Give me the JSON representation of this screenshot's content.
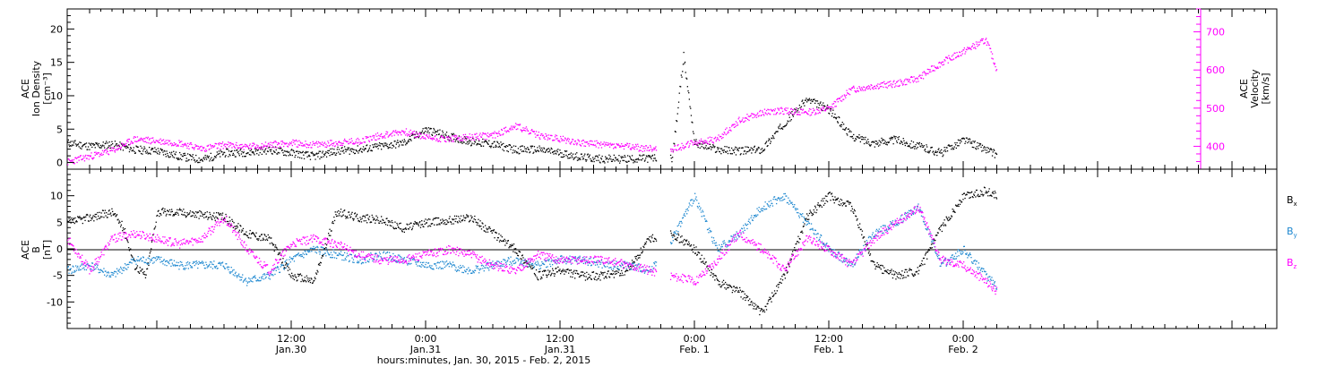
{
  "xaxis": {
    "title": "hours:minutes, Jan. 30, 2015 - Feb.  2, 2015",
    "range_hours": [
      -8,
      100
    ],
    "ticks": [
      {
        "h": 12,
        "top": "12:00",
        "bottom": "Jan.30"
      },
      {
        "h": 24,
        "top": "0:00",
        "bottom": "Jan.31"
      },
      {
        "h": 36,
        "top": "12:00",
        "bottom": "Jan.31"
      },
      {
        "h": 48,
        "top": "0:00",
        "bottom": "Feb. 1"
      },
      {
        "h": 60,
        "top": "12:00",
        "bottom": "Feb. 1"
      },
      {
        "h": 72,
        "top": "0:00",
        "bottom": "Feb. 2"
      }
    ]
  },
  "panel1": {
    "left_label": [
      "ACE",
      "Ion Density",
      "[cm⁻³]"
    ],
    "right_label": [
      "ACE",
      "Velocity",
      "[km/s]"
    ],
    "left_ticks": [
      "0",
      "5",
      "10",
      "15",
      "20"
    ],
    "right_ticks": [
      "400",
      "500",
      "600",
      "700"
    ],
    "density_color": "#000000",
    "velocity_color": "#ff00ff"
  },
  "panel2": {
    "left_label": [
      "ACE",
      "B",
      "[nT]"
    ],
    "ticks": [
      "-10",
      "-5",
      "0",
      "5",
      "10"
    ],
    "legend": [
      {
        "label": "Bx",
        "base": "B",
        "sub": "x",
        "color": "#000000"
      },
      {
        "label": "By",
        "base": "B",
        "sub": "y",
        "color": "#1e88d0"
      },
      {
        "label": "Bz",
        "base": "B",
        "sub": "z",
        "color": "#ff00ff"
      }
    ]
  },
  "chart_data": [
    {
      "type": "scatter",
      "title": "",
      "xlabel": "hours:minutes, Jan. 30, 2015 - Feb.  2, 2015",
      "ylabel": "ACE Ion Density [cm-3]",
      "y2label": "ACE Velocity [km/s]",
      "xlim": [
        -8,
        100
      ],
      "ylim": [
        -1,
        23
      ],
      "y2lim": [
        340,
        760
      ],
      "series": [
        {
          "name": "Ion Density",
          "axis": "left",
          "color": "#000000",
          "x": [
            -8,
            -6,
            -4,
            -2,
            0,
            2,
            4,
            6,
            8,
            10,
            12,
            14,
            16,
            18,
            20,
            22,
            24,
            26,
            28,
            30,
            32,
            34,
            36,
            38,
            40,
            42,
            44,
            46,
            47,
            48,
            50,
            52,
            54,
            56,
            58,
            60,
            62,
            64,
            66,
            68,
            70,
            72,
            74,
            75
          ],
          "y": [
            3.0,
            2.5,
            2.8,
            2.0,
            1.8,
            1.0,
            0.5,
            1.5,
            1.6,
            2.0,
            1.5,
            1.0,
            1.8,
            2.0,
            2.5,
            3.0,
            5.0,
            4.0,
            3.2,
            2.8,
            2.0,
            2.0,
            1.5,
            0.8,
            0.6,
            0.6,
            0.7,
            0.8,
            16.0,
            3.0,
            2.0,
            1.8,
            2.0,
            6.0,
            9.5,
            8.0,
            4.0,
            3.0,
            3.5,
            2.5,
            1.5,
            3.5,
            2.0,
            1.2
          ]
        },
        {
          "name": "Velocity",
          "axis": "right",
          "color": "#ff00ff",
          "x": [
            -8,
            -6,
            -4,
            -2,
            0,
            2,
            4,
            6,
            8,
            10,
            12,
            14,
            16,
            18,
            20,
            22,
            24,
            26,
            28,
            30,
            32,
            34,
            36,
            38,
            40,
            42,
            44,
            46,
            48,
            50,
            52,
            54,
            56,
            58,
            60,
            62,
            64,
            66,
            68,
            70,
            72,
            74,
            75
          ],
          "y": [
            360,
            375,
            390,
            420,
            415,
            410,
            395,
            405,
            400,
            405,
            410,
            405,
            410,
            415,
            430,
            440,
            425,
            420,
            425,
            430,
            455,
            430,
            420,
            410,
            405,
            400,
            395,
            395,
            410,
            420,
            470,
            490,
            495,
            490,
            500,
            550,
            560,
            565,
            580,
            620,
            650,
            680,
            600
          ]
        }
      ]
    },
    {
      "type": "scatter",
      "title": "",
      "xlabel": "hours:minutes, Jan. 30, 2015 - Feb.  2, 2015",
      "ylabel": "ACE B [nT]",
      "xlim": [
        -8,
        100
      ],
      "ylim": [
        -15,
        15
      ],
      "series": [
        {
          "name": "Bx",
          "color": "#000000",
          "x": [
            -8,
            -6,
            -4,
            -3,
            -2,
            -1,
            0,
            2,
            4,
            6,
            8,
            10,
            12,
            14,
            16,
            18,
            20,
            22,
            24,
            26,
            28,
            30,
            32,
            34,
            36,
            38,
            40,
            42,
            44,
            46,
            48,
            50,
            52,
            54,
            56,
            58,
            60,
            62,
            64,
            66,
            68,
            70,
            72,
            74,
            75
          ],
          "y": [
            5,
            6,
            7,
            4,
            -3,
            -5,
            7,
            7,
            6.5,
            6,
            3,
            2,
            -5,
            -6,
            7,
            6,
            5.5,
            4,
            5,
            5.5,
            6,
            3,
            0,
            -5,
            -4,
            -5,
            -5,
            -4,
            2,
            3,
            0,
            -6,
            -8,
            -12,
            -5,
            6,
            10,
            8,
            -3,
            -5,
            -4,
            4,
            10,
            11,
            10
          ]
        },
        {
          "name": "By",
          "color": "#1e88d0",
          "x": [
            -8,
            -6,
            -4,
            -2,
            0,
            2,
            4,
            6,
            8,
            10,
            12,
            14,
            16,
            18,
            20,
            22,
            24,
            26,
            28,
            30,
            32,
            34,
            36,
            38,
            40,
            42,
            44,
            46,
            48,
            50,
            52,
            54,
            56,
            58,
            60,
            62,
            64,
            66,
            68,
            70,
            72,
            74,
            75
          ],
          "y": [
            -4,
            -3,
            -5,
            -2,
            -2,
            -3,
            -3,
            -3,
            -6,
            -5,
            -2,
            0,
            -1,
            -2,
            -1,
            -2,
            -3,
            -3,
            -4,
            -3,
            -2,
            -3,
            -2,
            -2,
            -3,
            -3,
            -4,
            2,
            10,
            0,
            3,
            8,
            10,
            5,
            0,
            -3,
            3,
            5,
            8,
            -3,
            0,
            -5,
            -7
          ]
        },
        {
          "name": "Bz",
          "color": "#ff00ff",
          "x": [
            -8,
            -6,
            -4,
            -2,
            0,
            2,
            4,
            6,
            8,
            10,
            12,
            14,
            16,
            18,
            20,
            22,
            24,
            26,
            28,
            30,
            32,
            34,
            36,
            38,
            40,
            42,
            44,
            46,
            48,
            50,
            52,
            54,
            56,
            58,
            60,
            62,
            64,
            66,
            68,
            70,
            72,
            74,
            75
          ],
          "y": [
            2,
            -4,
            2,
            3,
            2,
            1,
            2,
            6,
            0,
            -4,
            1,
            2,
            1,
            -1,
            -2,
            -2,
            -1,
            0,
            -1,
            -3,
            -4,
            -1,
            -2,
            -2,
            -2,
            -3,
            -4,
            -5,
            -6,
            -2,
            3,
            0,
            -4,
            2,
            0,
            -3,
            2,
            5,
            8,
            -2,
            -3,
            -6,
            -8
          ]
        }
      ]
    }
  ]
}
